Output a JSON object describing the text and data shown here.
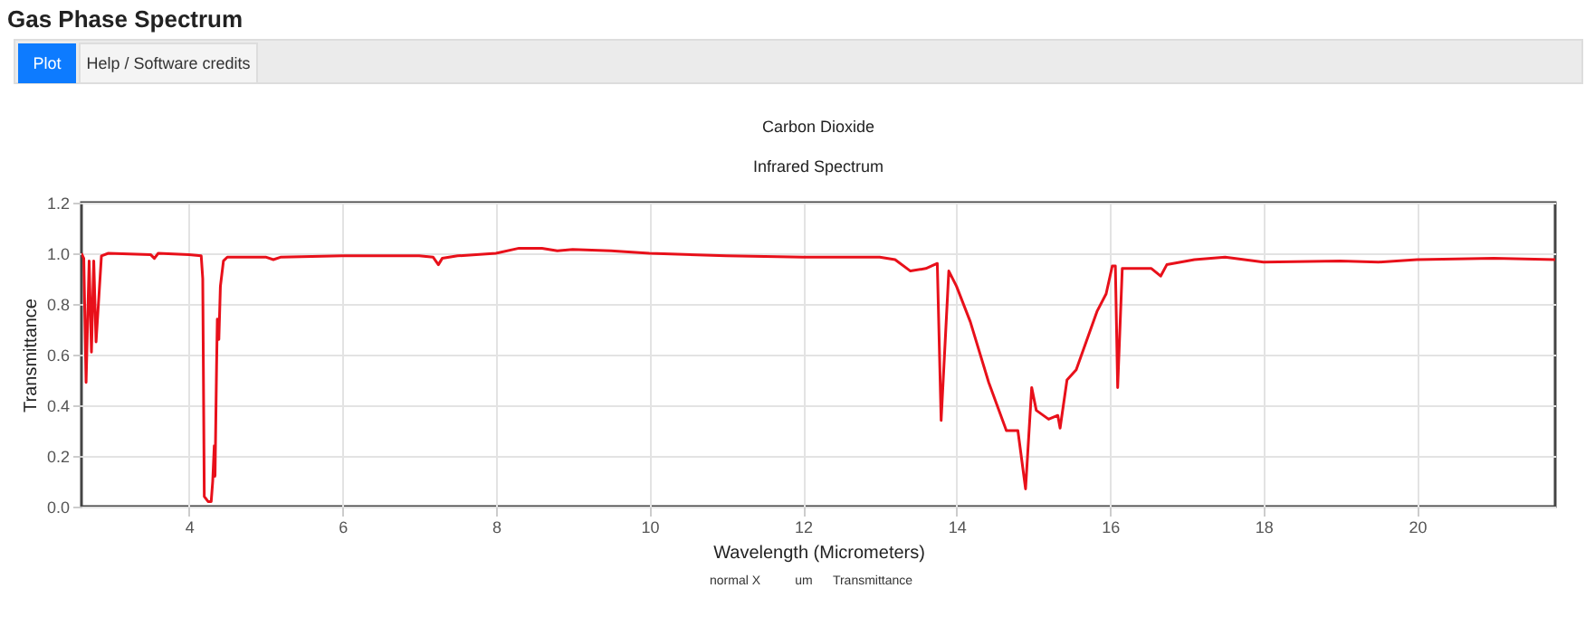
{
  "chart_data": {
    "type": "line",
    "title": "Gas Phase Spectrum",
    "subtitle": "Carbon Dioxide",
    "xlabel": "Wavelength (Micrometers)",
    "ylabel": "Transmittance",
    "annotations": [
      "Infrared Spectrum",
      "Plot",
      "Help / Software credits",
      "normal X",
      "um",
      "Transmittance"
    ],
    "xlim": [
      2.6,
      21.8
    ],
    "xticks": [
      4,
      6,
      8,
      10,
      12,
      14,
      16,
      18,
      20
    ],
    "ylim": [
      0,
      1.2
    ],
    "yticks": [
      {
        "value": 0,
        "label": "0.0"
      },
      {
        "value": 0.2,
        "label": "0.2"
      },
      {
        "value": 0.4,
        "label": "0.4"
      },
      {
        "value": 0.6,
        "label": "0.6"
      },
      {
        "value": 0.8,
        "label": "0.8"
      },
      {
        "value": 1,
        "label": "1.0"
      },
      {
        "value": 1.2,
        "label": "1.2"
      }
    ],
    "grid": true,
    "marker": "none",
    "line_style": "solid",
    "series": [
      {
        "color": "#e8101a",
        "x": [
          2.6,
          2.63,
          2.66,
          2.7,
          2.73,
          2.76,
          2.79,
          2.86,
          2.95,
          3.5,
          3.55,
          3.6,
          4.0,
          4.16,
          4.18,
          4.2,
          4.25,
          4.29,
          4.31,
          4.33,
          4.34,
          4.36,
          4.37,
          4.39,
          4.41,
          4.45,
          4.5,
          5.0,
          5.1,
          5.2,
          6.0,
          7.0,
          7.18,
          7.25,
          7.3,
          7.5,
          8.0,
          8.3,
          8.6,
          8.8,
          9.0,
          9.5,
          10.0,
          11.0,
          12.0,
          13.0,
          13.2,
          13.4,
          13.6,
          13.75,
          13.8,
          13.9,
          14.0,
          14.18,
          14.42,
          14.65,
          14.8,
          14.9,
          14.98,
          15.04,
          15.2,
          15.32,
          15.35,
          15.44,
          15.56,
          15.83,
          15.95,
          16.03,
          16.07,
          16.1,
          16.16,
          16.54,
          16.66,
          16.74,
          17.1,
          17.5,
          18.0,
          19.0,
          19.5,
          20.0,
          21.0,
          21.8
        ],
        "values": [
          1.0,
          0.98,
          0.49,
          0.97,
          0.61,
          0.97,
          0.65,
          0.99,
          1.0,
          0.995,
          0.98,
          1.0,
          0.995,
          0.99,
          0.9,
          0.04,
          0.02,
          0.02,
          0.1,
          0.24,
          0.12,
          0.55,
          0.74,
          0.66,
          0.87,
          0.97,
          0.985,
          0.985,
          0.975,
          0.985,
          0.99,
          0.99,
          0.985,
          0.955,
          0.98,
          0.99,
          1.0,
          1.02,
          1.02,
          1.01,
          1.015,
          1.01,
          1.0,
          0.99,
          0.985,
          0.985,
          0.975,
          0.93,
          0.94,
          0.96,
          0.34,
          0.93,
          0.87,
          0.73,
          0.49,
          0.3,
          0.3,
          0.07,
          0.47,
          0.38,
          0.345,
          0.36,
          0.31,
          0.5,
          0.54,
          0.77,
          0.84,
          0.95,
          0.95,
          0.47,
          0.94,
          0.94,
          0.91,
          0.955,
          0.975,
          0.985,
          0.965,
          0.97,
          0.965,
          0.975,
          0.98,
          0.975
        ]
      }
    ]
  }
}
